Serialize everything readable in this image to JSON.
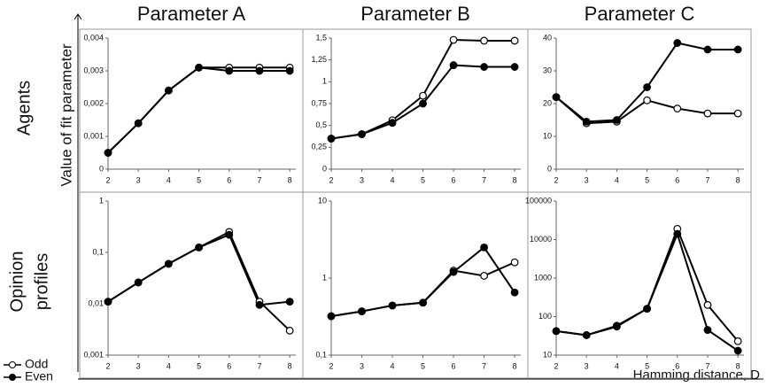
{
  "figure": {
    "ylabel": "Value of fit parameter",
    "xlabel": "Hamming distance, D",
    "row_labels": [
      [
        "Agents"
      ],
      [
        "Opinion",
        "profiles"
      ]
    ]
  },
  "chart_data": [
    {
      "type": "line",
      "title": "Parameter A",
      "log_y": false,
      "x": [
        2,
        3,
        4,
        5,
        6,
        7,
        8
      ],
      "xlim": [
        2,
        8.2
      ],
      "xticks": [
        2,
        3,
        4,
        5,
        6,
        7,
        8
      ],
      "ylim": [
        0,
        0.004
      ],
      "yticks": [
        0,
        {
          "value": 0.001,
          "label": "0,001"
        },
        {
          "value": 0.002,
          "label": "0,002"
        },
        {
          "value": 0.003,
          "label": "0,003"
        },
        {
          "value": 0.004,
          "label": "0,004"
        }
      ],
      "series": [
        {
          "name": "Odd",
          "color": "#000000",
          "marker_fill": "#ffffff",
          "values": [
            0.0005,
            0.0014,
            0.0024,
            0.0031,
            0.0031,
            0.0031,
            0.0031
          ]
        },
        {
          "name": "Even",
          "color": "#000000",
          "marker_fill": "#000000",
          "values": [
            0.0005,
            0.0014,
            0.0024,
            0.0031,
            0.003,
            0.003,
            0.003
          ]
        }
      ]
    },
    {
      "type": "line",
      "title": "Parameter B",
      "log_y": false,
      "x": [
        2,
        3,
        4,
        5,
        6,
        7,
        8
      ],
      "xlim": [
        2,
        8.2
      ],
      "xticks": [
        2,
        3,
        4,
        5,
        6,
        7,
        8
      ],
      "ylim": [
        0,
        1.5
      ],
      "yticks": [
        0,
        {
          "value": 0.25,
          "label": "0,25"
        },
        {
          "value": 0.5,
          "label": "0,5"
        },
        {
          "value": 0.75,
          "label": "0,75"
        },
        1,
        {
          "value": 1.25,
          "label": "1,25"
        },
        {
          "value": 1.5,
          "label": "1,5"
        }
      ],
      "series": [
        {
          "name": "Odd",
          "color": "#000000",
          "marker_fill": "#ffffff",
          "values": [
            0.35,
            0.4,
            0.56,
            0.84,
            1.48,
            1.47,
            1.47
          ]
        },
        {
          "name": "Even",
          "color": "#000000",
          "marker_fill": "#000000",
          "values": [
            0.35,
            0.4,
            0.53,
            0.75,
            1.19,
            1.17,
            1.17
          ]
        }
      ]
    },
    {
      "type": "line",
      "title": "Parameter C",
      "log_y": false,
      "x": [
        2,
        3,
        4,
        5,
        6,
        7,
        8
      ],
      "xlim": [
        2,
        8.2
      ],
      "xticks": [
        2,
        3,
        4,
        5,
        6,
        7,
        8
      ],
      "ylim": [
        0,
        40
      ],
      "yticks": [
        0,
        10,
        20,
        30,
        40
      ],
      "series": [
        {
          "name": "Odd",
          "color": "#000000",
          "marker_fill": "#ffffff",
          "values": [
            22,
            14,
            14.5,
            21,
            18.5,
            17,
            17
          ]
        },
        {
          "name": "Even",
          "color": "#000000",
          "marker_fill": "#000000",
          "values": [
            22,
            14.5,
            15,
            25,
            38.5,
            36.5,
            36.5
          ]
        }
      ]
    },
    {
      "type": "line",
      "log_y": true,
      "x": [
        2,
        3,
        4,
        5,
        6,
        7,
        8
      ],
      "xlim": [
        2,
        8.2
      ],
      "xticks": [
        2,
        3,
        4,
        5,
        6,
        7,
        8
      ],
      "ylim": [
        0.001,
        1
      ],
      "yticks": [
        {
          "value": 0.001,
          "label": "0,001"
        },
        {
          "value": 0.01,
          "label": "0,01"
        },
        {
          "value": 0.1,
          "label": "0,1"
        },
        1
      ],
      "series": [
        {
          "name": "Odd",
          "color": "#000000",
          "marker_fill": "#ffffff",
          "values": [
            0.011,
            0.026,
            0.06,
            0.125,
            0.25,
            0.011,
            0.003
          ]
        },
        {
          "name": "Even",
          "color": "#000000",
          "marker_fill": "#000000",
          "values": [
            0.011,
            0.026,
            0.06,
            0.125,
            0.22,
            0.0095,
            0.011
          ]
        }
      ]
    },
    {
      "type": "line",
      "log_y": true,
      "x": [
        2,
        3,
        4,
        5,
        6,
        7,
        8
      ],
      "xlim": [
        2,
        8.2
      ],
      "xticks": [
        2,
        3,
        4,
        5,
        6,
        7,
        8
      ],
      "ylim": [
        0.1,
        10
      ],
      "yticks": [
        {
          "value": 0.1,
          "label": "0,1"
        },
        1,
        10
      ],
      "series": [
        {
          "name": "Odd",
          "color": "#000000",
          "marker_fill": "#ffffff",
          "values": [
            0.32,
            0.37,
            0.44,
            0.48,
            1.25,
            1.07,
            1.6
          ]
        },
        {
          "name": "Even",
          "color": "#000000",
          "marker_fill": "#000000",
          "values": [
            0.32,
            0.37,
            0.44,
            0.48,
            1.2,
            2.5,
            0.65
          ]
        }
      ]
    },
    {
      "type": "line",
      "log_y": true,
      "x": [
        2,
        3,
        4,
        5,
        6,
        7,
        8
      ],
      "xlim": [
        2,
        8.2
      ],
      "xticks": [
        2,
        3,
        4,
        5,
        6,
        7,
        8
      ],
      "ylim": [
        10,
        100000
      ],
      "yticks": [
        10,
        100,
        1000,
        10000,
        100000
      ],
      "series": [
        {
          "name": "Odd",
          "color": "#000000",
          "marker_fill": "#ffffff",
          "values": [
            42,
            33,
            58,
            160,
            19000,
            200,
            23
          ]
        },
        {
          "name": "Even",
          "color": "#000000",
          "marker_fill": "#000000",
          "values": [
            42,
            33,
            55,
            160,
            14000,
            45,
            13
          ]
        }
      ]
    }
  ]
}
